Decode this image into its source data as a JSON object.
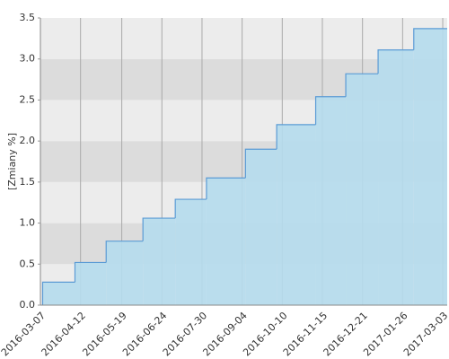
{
  "chart_data": {
    "type": "step-area",
    "y_label": "[Zmiany %]",
    "x": [
      "2016-03-09",
      "2016-04-07",
      "2016-05-05",
      "2016-06-07",
      "2016-07-06",
      "2016-08-03",
      "2016-09-07",
      "2016-10-05",
      "2016-11-09",
      "2016-12-06",
      "2017-01-04",
      "2017-02-05"
    ],
    "values": [
      0.28,
      0.52,
      0.78,
      1.06,
      1.29,
      1.55,
      1.9,
      2.2,
      2.54,
      2.82,
      3.11,
      3.37
    ],
    "color": "#5b9bd5",
    "fill": "#b5dced",
    "xlim": [
      "2016-03-07",
      "2017-03-07"
    ],
    "xticks": [
      "2016-03-07",
      "2016-04-12",
      "2016-05-19",
      "2016-06-24",
      "2016-07-30",
      "2016-09-04",
      "2016-10-10",
      "2016-11-15",
      "2016-12-21",
      "2017-01-26",
      "2017-03-03"
    ],
    "ylim": [
      0,
      3.5
    ],
    "yticks": [
      {
        "value": 0,
        "label": "0.0"
      },
      {
        "value": 0.5,
        "label": "0.5"
      },
      {
        "value": 1,
        "label": "1.0"
      },
      {
        "value": 1.5,
        "label": "1.5"
      },
      {
        "value": 2,
        "label": "2.0"
      },
      {
        "value": 2.5,
        "label": "2.5"
      },
      {
        "value": 3,
        "label": "3.0"
      },
      {
        "value": 3.5,
        "label": "3.5"
      }
    ],
    "grid": true
  }
}
